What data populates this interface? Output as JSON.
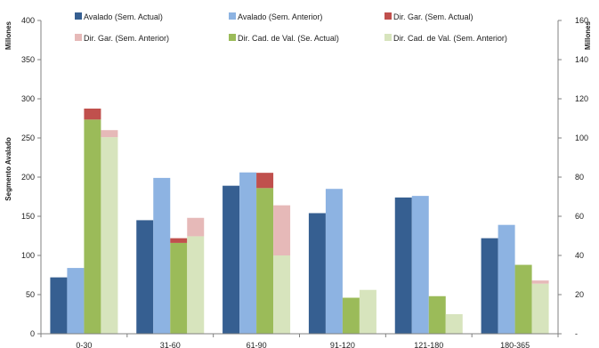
{
  "chart_data": {
    "type": "bar",
    "categories": [
      "0-30",
      "31-60",
      "61-90",
      "91-120",
      "121-180",
      "180-365"
    ],
    "left_axis": {
      "unit_label": "Millones",
      "title": "Segmento Avalado",
      "ylim": [
        0,
        400
      ],
      "ticks": [
        "0",
        "50",
        "100",
        "150",
        "200",
        "250",
        "300",
        "350",
        "400"
      ]
    },
    "right_axis": {
      "unit_label": "Millones",
      "ylim": [
        0,
        160
      ],
      "ticks": [
        "-",
        "20",
        "40",
        "60",
        "80",
        "100",
        "120",
        "140",
        "160"
      ]
    },
    "series": [
      {
        "name": "Avalado (Sem. Actual)",
        "axis": "left",
        "color": "#365f91",
        "group": "a",
        "values": [
          72,
          145,
          189,
          154,
          174,
          122
        ]
      },
      {
        "name": "Avalado (Sem. Anterior)",
        "axis": "left",
        "color": "#8db3e2",
        "group": "b",
        "values": [
          84,
          199,
          206,
          185,
          176,
          139
        ]
      },
      {
        "name": "Dir. Gar. (Sem. Actual)",
        "axis": "right",
        "color": "#c0504d",
        "group": "c",
        "stack": "top",
        "values": [
          5.6,
          2.4,
          7.8,
          0,
          0,
          0
        ]
      },
      {
        "name": "Dir. Gar. (Sem. Anterior)",
        "axis": "right",
        "color": "#e6b9b8",
        "group": "d",
        "stack": "top",
        "values": [
          3.6,
          9.4,
          25.6,
          0,
          0,
          1.6
        ]
      },
      {
        "name": "Dir. Cad. de Val. (Se. Actual)",
        "axis": "right",
        "color": "#9bbb59",
        "group": "c",
        "stack": "base",
        "values": [
          109.4,
          46.4,
          74.4,
          18.4,
          19.2,
          35.2
        ]
      },
      {
        "name": "Dir. Cad. de Val. (Sem. Anterior)",
        "axis": "right",
        "color": "#d7e4bd",
        "group": "d",
        "stack": "base",
        "values": [
          100.4,
          49.8,
          40,
          22.4,
          10,
          25.6
        ]
      }
    ],
    "legend_placement": "top",
    "grid": false
  }
}
